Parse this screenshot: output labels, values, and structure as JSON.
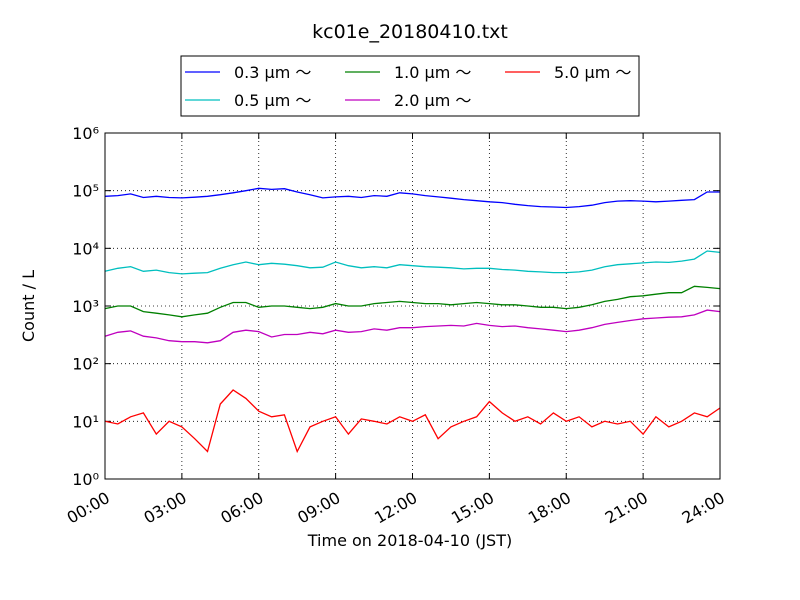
{
  "chart_data": {
    "type": "line",
    "title": "kc01e_20180410.txt",
    "x_label": "Time on 2018-04-10 (JST)",
    "y_label": "Count / L",
    "log_scale": true,
    "grid": true,
    "xlim": [
      0,
      24
    ],
    "xticks": [
      {
        "value": 0,
        "label": "00:00"
      },
      {
        "value": 3,
        "label": "03:00"
      },
      {
        "value": 6,
        "label": "06:00"
      },
      {
        "value": 9,
        "label": "09:00"
      },
      {
        "value": 12,
        "label": "12:00"
      },
      {
        "value": 15,
        "label": "15:00"
      },
      {
        "value": 18,
        "label": "18:00"
      },
      {
        "value": 21,
        "label": "21:00"
      },
      {
        "value": 24,
        "label": "24:00"
      }
    ],
    "ylim": [
      1,
      1000000
    ],
    "yticks": [
      {
        "value": 1,
        "label": "10⁰"
      },
      {
        "value": 10,
        "label": "10¹"
      },
      {
        "value": 100,
        "label": "10²"
      },
      {
        "value": 1000,
        "label": "10³"
      },
      {
        "value": 10000,
        "label": "10⁴"
      },
      {
        "value": 100000,
        "label": "10⁵"
      },
      {
        "value": 1000000,
        "label": "10⁶"
      }
    ],
    "x": [
      0,
      0.5,
      1,
      1.5,
      2,
      2.5,
      3,
      3.5,
      4,
      4.5,
      5,
      5.5,
      6,
      6.5,
      7,
      7.5,
      8,
      8.5,
      9,
      9.5,
      10,
      10.5,
      11,
      11.5,
      12,
      12.5,
      13,
      13.5,
      14,
      14.5,
      15,
      15.5,
      16,
      16.5,
      17,
      17.5,
      18,
      18.5,
      19,
      19.5,
      20,
      20.5,
      21,
      21.5,
      22,
      22.5,
      23,
      23.5,
      24
    ],
    "series": [
      {
        "name": "0.3 μm ～",
        "color": "#0000ff",
        "values": [
          80000,
          82000,
          88000,
          76000,
          80000,
          76000,
          75000,
          77000,
          80000,
          85000,
          92000,
          100000,
          110000,
          105000,
          108000,
          95000,
          85000,
          75000,
          78000,
          80000,
          76000,
          82000,
          80000,
          92000,
          88000,
          82000,
          78000,
          74000,
          70000,
          67000,
          64000,
          62000,
          58000,
          55000,
          53000,
          52000,
          51000,
          53000,
          56000,
          62000,
          66000,
          67000,
          66000,
          64000,
          66000,
          68000,
          70000,
          95000,
          95000
        ]
      },
      {
        "name": "0.5 μm ～",
        "color": "#00bfbf",
        "values": [
          4000,
          4500,
          4800,
          4000,
          4200,
          3800,
          3600,
          3700,
          3800,
          4500,
          5200,
          5800,
          5200,
          5500,
          5300,
          5000,
          4600,
          4700,
          5800,
          5000,
          4600,
          4800,
          4600,
          5200,
          5000,
          4800,
          4700,
          4600,
          4400,
          4500,
          4500,
          4300,
          4200,
          4000,
          3900,
          3800,
          3800,
          3900,
          4200,
          4800,
          5200,
          5400,
          5600,
          5800,
          5700,
          6000,
          6500,
          9000,
          8500
        ]
      },
      {
        "name": "1.0 μm ～",
        "color": "#008000",
        "values": [
          900,
          1000,
          1000,
          800,
          750,
          700,
          650,
          700,
          750,
          950,
          1150,
          1150,
          950,
          1000,
          1000,
          950,
          900,
          950,
          1100,
          1000,
          1000,
          1100,
          1150,
          1200,
          1150,
          1100,
          1100,
          1050,
          1100,
          1150,
          1100,
          1050,
          1050,
          1000,
          950,
          950,
          900,
          950,
          1050,
          1200,
          1300,
          1450,
          1500,
          1600,
          1700,
          1700,
          2200,
          2100,
          2000
        ]
      },
      {
        "name": "2.0 μm ～",
        "color": "#bf00bf",
        "values": [
          300,
          350,
          370,
          300,
          280,
          250,
          240,
          240,
          230,
          250,
          350,
          380,
          360,
          290,
          320,
          320,
          350,
          330,
          380,
          350,
          360,
          400,
          380,
          420,
          420,
          440,
          450,
          460,
          450,
          500,
          460,
          440,
          450,
          420,
          400,
          380,
          360,
          380,
          420,
          480,
          520,
          560,
          600,
          620,
          640,
          650,
          700,
          850,
          800
        ]
      },
      {
        "name": "5.0 μm ～",
        "color": "#ff0000",
        "values": [
          10,
          9,
          12,
          14,
          6,
          10,
          8,
          5,
          3,
          20,
          35,
          25,
          15,
          12,
          13,
          3,
          8,
          10,
          12,
          6,
          11,
          10,
          9,
          12,
          10,
          13,
          5,
          8,
          10,
          12,
          22,
          14,
          10,
          12,
          9,
          14,
          10,
          12,
          8,
          10,
          9,
          10,
          6,
          12,
          8,
          10,
          14,
          12,
          17
        ]
      }
    ]
  }
}
